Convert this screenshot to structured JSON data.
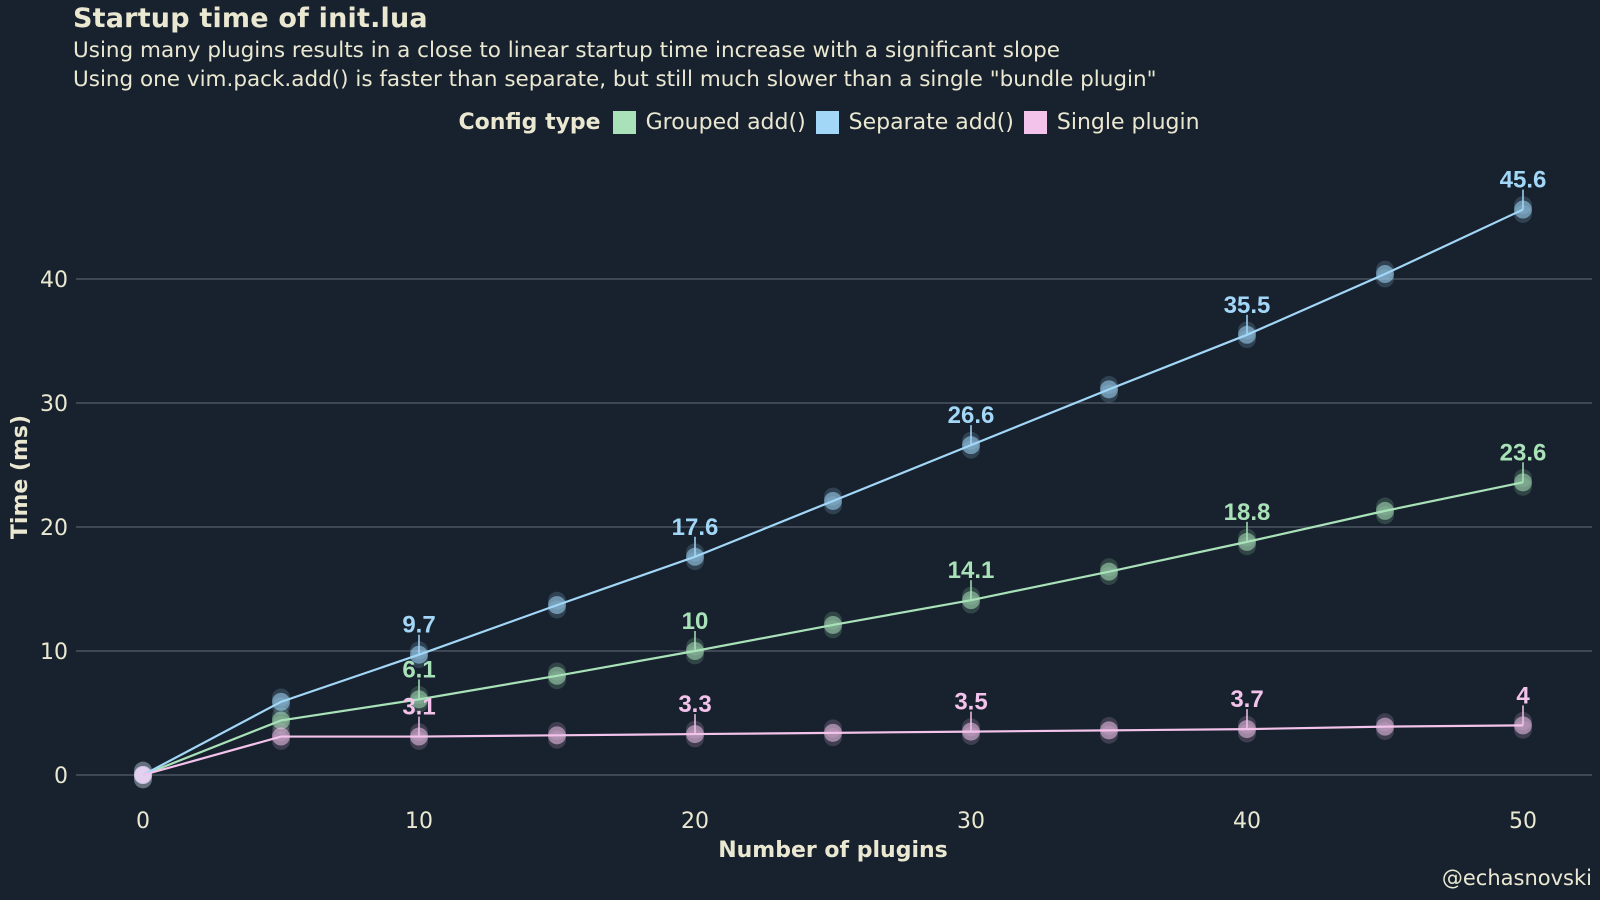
{
  "chart_data": {
    "type": "line",
    "title": "Startup time of init.lua",
    "subtitle": [
      "Using many plugins results in a close to linear startup time increase with a significant slope",
      "Using one vim.pack.add() is faster than separate, but still much slower than a single \"bundle plugin\""
    ],
    "xlabel": "Number of plugins",
    "ylabel": "Time (ms)",
    "xlim": [
      0,
      50
    ],
    "ylim": [
      0,
      45.6
    ],
    "xticks": [
      0,
      10,
      20,
      30,
      40,
      50
    ],
    "yticks": [
      0,
      10,
      20,
      30,
      40
    ],
    "grid": "horizontal",
    "legend": {
      "title": "Config type",
      "placement": "top-center",
      "entries": [
        "Grouped add()",
        "Separate add()",
        "Single plugin"
      ]
    },
    "x": [
      0,
      5,
      10,
      15,
      20,
      25,
      30,
      35,
      40,
      45,
      50
    ],
    "series": [
      {
        "name": "Grouped add()",
        "color": "#a9e2b9",
        "values": [
          0,
          4.4,
          6.1,
          8.0,
          10,
          12.1,
          14.1,
          16.4,
          18.8,
          21.3,
          23.6
        ],
        "labeled": [
          10,
          20,
          30,
          40,
          50
        ]
      },
      {
        "name": "Separate add()",
        "color": "#a3d7f8",
        "values": [
          0,
          5.9,
          9.7,
          13.7,
          17.6,
          22.1,
          26.6,
          31.1,
          35.5,
          40.4,
          45.6
        ],
        "labeled": [
          10,
          20,
          30,
          40,
          50
        ]
      },
      {
        "name": "Single plugin",
        "color": "#f3c3ec",
        "values": [
          0,
          3.1,
          3.1,
          3.2,
          3.3,
          3.4,
          3.5,
          3.6,
          3.7,
          3.9,
          4
        ],
        "labeled": [
          10,
          20,
          30,
          40,
          50
        ]
      }
    ]
  },
  "caption": "@echasnovski",
  "colors": {
    "background": "#18222e",
    "text": "#ebe8d2",
    "grid": "#4a5561"
  }
}
